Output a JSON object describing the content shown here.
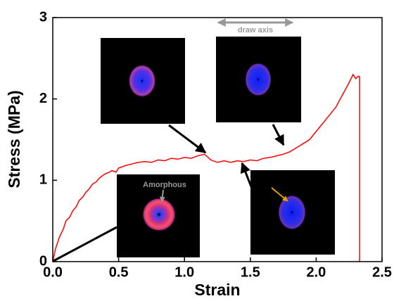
{
  "chart_data": {
    "type": "line",
    "x_label": "Strain",
    "y_label": "Stress (MPa)",
    "x": [
      0,
      0.02,
      0.05,
      0.08,
      0.1,
      0.13,
      0.15,
      0.18,
      0.2,
      0.23,
      0.25,
      0.28,
      0.3,
      0.33,
      0.35,
      0.38,
      0.4,
      0.43,
      0.45,
      0.48,
      0.5,
      0.55,
      0.6,
      0.65,
      0.7,
      0.75,
      0.8,
      0.85,
      0.9,
      0.95,
      1.0,
      1.05,
      1.1,
      1.15,
      1.18,
      1.2,
      1.25,
      1.3,
      1.35,
      1.4,
      1.45,
      1.5,
      1.55,
      1.6,
      1.65,
      1.7,
      1.75,
      1.8,
      1.85,
      1.9,
      1.95,
      2.0,
      2.05,
      2.1,
      2.15,
      2.2,
      2.25,
      2.28,
      2.3,
      2.32,
      2.33,
      2.33
    ],
    "values": [
      0,
      0.15,
      0.3,
      0.4,
      0.5,
      0.55,
      0.62,
      0.68,
      0.75,
      0.8,
      0.85,
      0.9,
      0.95,
      0.98,
      1.02,
      1.06,
      1.08,
      1.1,
      1.12,
      1.1,
      1.15,
      1.18,
      1.2,
      1.22,
      1.23,
      1.22,
      1.25,
      1.24,
      1.27,
      1.26,
      1.28,
      1.27,
      1.3,
      1.32,
      1.28,
      1.25,
      1.22,
      1.24,
      1.22,
      1.24,
      1.23,
      1.25,
      1.24,
      1.27,
      1.28,
      1.3,
      1.32,
      1.35,
      1.4,
      1.45,
      1.5,
      1.6,
      1.7,
      1.8,
      1.9,
      2.05,
      2.2,
      2.3,
      2.25,
      2.28,
      2.27,
      0
    ],
    "color": "#ff0000",
    "xlim": [
      0,
      2.5
    ],
    "ylim": [
      0,
      3
    ],
    "xticks": [
      {
        "value": 0,
        "label": "0.0"
      },
      0.5,
      {
        "value": 1,
        "label": "1.0"
      },
      1.5,
      {
        "value": 2,
        "label": "2.0"
      },
      2.5
    ],
    "yticks": [
      0,
      1,
      2,
      3
    ],
    "annotations": [
      "draw axis",
      "Amorphous"
    ]
  }
}
